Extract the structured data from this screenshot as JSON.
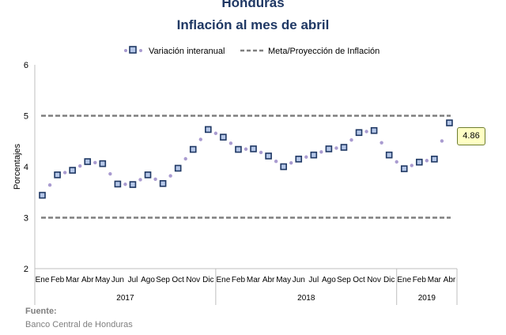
{
  "title": "Honduras",
  "subtitle": "Inflación al mes de abril",
  "source_heading": "Fuente:",
  "source_text": "Banco Central de Honduras",
  "colors": {
    "marker_fill": "#b4c6e7",
    "marker_border": "#1f3864",
    "dots": "#a99bd0",
    "meta": "#7f7f7f",
    "title": "#1f3864"
  },
  "chart_data": {
    "type": "line",
    "ylabel": "Porcentajes",
    "ylim": [
      2,
      6
    ],
    "yticks": [
      "2",
      "3",
      "4",
      "5",
      "6"
    ],
    "months": [
      "Ene",
      "Feb",
      "Mar",
      "Abr",
      "May",
      "Jun",
      "Jul",
      "Ago",
      "Sep",
      "Oct",
      "Nov",
      "Dic",
      "Ene",
      "Feb",
      "Mar",
      "Abr",
      "May",
      "Jun",
      "Jul",
      "Ago",
      "Sep",
      "Oct",
      "Nov",
      "Dic",
      "Ene",
      "Feb",
      "Mar",
      "Abr"
    ],
    "years": [
      {
        "label": "2017",
        "months": 12
      },
      {
        "label": "2018",
        "months": 12
      },
      {
        "label": "2019",
        "months": 4
      }
    ],
    "series": [
      {
        "name": "Variación interanual",
        "values": [
          3.44,
          3.84,
          3.93,
          4.1,
          4.06,
          3.66,
          3.65,
          3.84,
          3.67,
          3.97,
          4.34,
          4.73,
          4.58,
          4.34,
          4.35,
          4.21,
          4.0,
          4.15,
          4.23,
          4.35,
          4.38,
          4.67,
          4.71,
          4.23,
          3.96,
          4.09,
          4.15,
          4.86
        ]
      },
      {
        "name": "Meta/Proyección de Inflación",
        "upper": 5.0,
        "lower": 3.0
      }
    ],
    "annotation": "4.86",
    "legend_position": "top"
  }
}
